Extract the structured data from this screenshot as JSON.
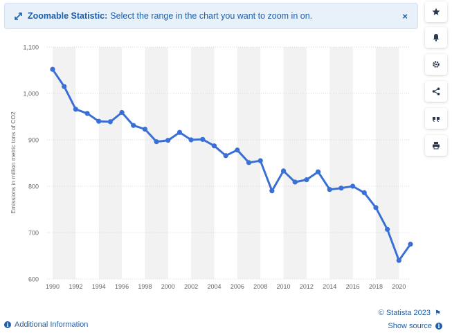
{
  "banner": {
    "title": "Zoomable Statistic:",
    "message": "Select the range in the chart you want to zoom in on.",
    "close_label": "×"
  },
  "sidebar": {
    "buttons": [
      {
        "icon": "star-icon",
        "name": "favorite-button"
      },
      {
        "icon": "bell-icon",
        "name": "notification-button"
      },
      {
        "icon": "gear-icon",
        "name": "settings-button"
      },
      {
        "icon": "share-icon",
        "name": "share-button"
      },
      {
        "icon": "quote-icon",
        "name": "cite-button"
      },
      {
        "icon": "print-icon",
        "name": "print-button"
      }
    ]
  },
  "footer": {
    "additional_info": "Additional Information",
    "credit": "© Statista 2023",
    "show_source": "Show source"
  },
  "colors": {
    "line": "#3a70d6",
    "accent": "#1f5ea8",
    "band": "#f2f2f2"
  },
  "chart_data": {
    "type": "line",
    "title": "",
    "xlabel": "",
    "ylabel": "Emissions in million metric tons of CO2",
    "ylim": [
      600,
      1100
    ],
    "xlim": [
      1990,
      2021
    ],
    "yticks": [
      600,
      700,
      800,
      900,
      1000,
      1100
    ],
    "ytick_labels": [
      "600",
      "700",
      "800",
      "900",
      "1,000",
      "1,100"
    ],
    "xticks": [
      1990,
      1992,
      1994,
      1996,
      1998,
      2000,
      2002,
      2004,
      2006,
      2008,
      2010,
      2012,
      2014,
      2016,
      2018,
      2020
    ],
    "grid": true,
    "x": [
      1990,
      1991,
      1992,
      1993,
      1994,
      1995,
      1996,
      1997,
      1998,
      1999,
      2000,
      2001,
      2002,
      2003,
      2004,
      2005,
      2006,
      2007,
      2008,
      2009,
      2010,
      2011,
      2012,
      2013,
      2014,
      2015,
      2016,
      2017,
      2018,
      2019,
      2020,
      2021
    ],
    "series": [
      {
        "values": [
          1052,
          1015,
          966,
          957,
          940,
          939,
          959,
          931,
          923,
          896,
          899,
          916,
          900,
          901,
          887,
          866,
          878,
          851,
          855,
          790,
          833,
          809,
          814,
          831,
          793,
          796,
          800,
          786,
          754,
          707,
          640,
          675
        ]
      }
    ]
  }
}
